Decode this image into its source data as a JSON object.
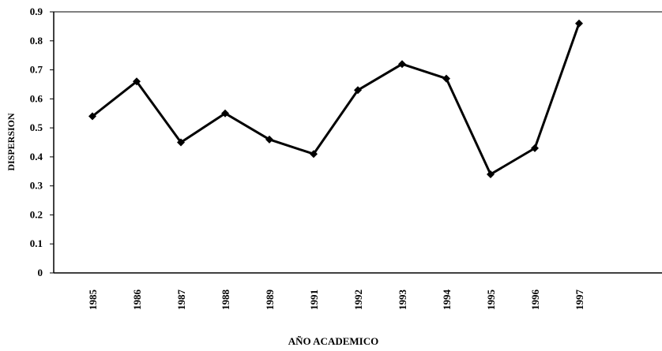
{
  "chart_data": {
    "type": "line",
    "x_label": "AÑO ACADEMICO",
    "y_label": "DISPERSION",
    "categories": [
      "1985",
      "1986",
      "1987",
      "1988",
      "1989",
      "1991",
      "1992",
      "1993",
      "1994",
      "1995",
      "1996",
      "1997"
    ],
    "series": [
      {
        "name": "Dispersion",
        "color": "#000000",
        "values": [
          0.54,
          0.66,
          0.45,
          0.55,
          0.46,
          0.41,
          0.63,
          0.72,
          0.67,
          0.34,
          0.43,
          0.86
        ]
      }
    ],
    "ylim": [
      0,
      0.9
    ],
    "yticks": [
      0,
      0.1,
      0.2,
      0.3,
      0.4,
      0.5,
      0.6,
      0.7,
      0.8,
      0.9
    ],
    "grid": false
  }
}
